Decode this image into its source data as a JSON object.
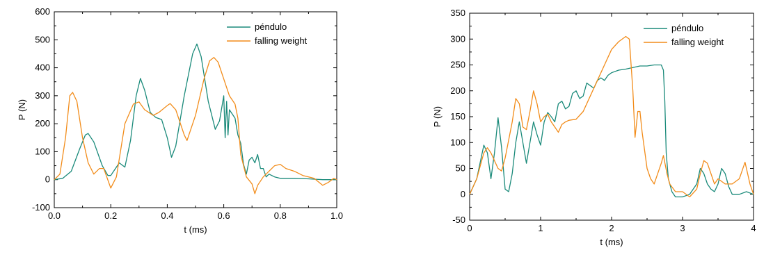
{
  "chart_data": [
    {
      "type": "line",
      "xlabel": "t (ms)",
      "ylabel": "P (N)",
      "xlim": [
        0.0,
        1.0
      ],
      "ylim": [
        -100,
        600
      ],
      "xticks": [
        "0.0",
        "0.2",
        "0.4",
        "0.6",
        "0.8",
        "1.0"
      ],
      "yticks": [
        "-100",
        "0",
        "100",
        "200",
        "300",
        "400",
        "500",
        "600"
      ],
      "legend_position": "top-right",
      "grid": false,
      "series": [
        {
          "name": "péndulo",
          "color": "#1a8a7a",
          "points": [
            [
              0,
              0
            ],
            [
              0.03,
              5
            ],
            [
              0.06,
              30
            ],
            [
              0.09,
              110
            ],
            [
              0.11,
              160
            ],
            [
              0.12,
              165
            ],
            [
              0.14,
              135
            ],
            [
              0.17,
              50
            ],
            [
              0.19,
              15
            ],
            [
              0.2,
              15
            ],
            [
              0.22,
              45
            ],
            [
              0.23,
              60
            ],
            [
              0.25,
              45
            ],
            [
              0.27,
              140
            ],
            [
              0.29,
              300
            ],
            [
              0.305,
              362
            ],
            [
              0.32,
              320
            ],
            [
              0.34,
              240
            ],
            [
              0.36,
              222
            ],
            [
              0.38,
              215
            ],
            [
              0.4,
              150
            ],
            [
              0.415,
              80
            ],
            [
              0.43,
              120
            ],
            [
              0.46,
              300
            ],
            [
              0.49,
              450
            ],
            [
              0.505,
              485
            ],
            [
              0.52,
              440
            ],
            [
              0.545,
              280
            ],
            [
              0.57,
              180
            ],
            [
              0.585,
              210
            ],
            [
              0.6,
              300
            ],
            [
              0.605,
              150
            ],
            [
              0.61,
              280
            ],
            [
              0.615,
              160
            ],
            [
              0.62,
              250
            ],
            [
              0.64,
              220
            ],
            [
              0.65,
              160
            ],
            [
              0.66,
              130
            ],
            [
              0.67,
              55
            ],
            [
              0.68,
              20
            ],
            [
              0.69,
              70
            ],
            [
              0.7,
              80
            ],
            [
              0.71,
              60
            ],
            [
              0.72,
              90
            ],
            [
              0.73,
              40
            ],
            [
              0.74,
              40
            ],
            [
              0.75,
              10
            ],
            [
              0.76,
              20
            ],
            [
              0.78,
              10
            ],
            [
              0.8,
              5
            ],
            [
              0.85,
              5
            ],
            [
              0.9,
              3
            ],
            [
              0.95,
              0
            ],
            [
              1.0,
              0
            ]
          ]
        },
        {
          "name": "falling weight",
          "color": "#f28c1a",
          "points": [
            [
              0,
              0
            ],
            [
              0.02,
              20
            ],
            [
              0.04,
              150
            ],
            [
              0.055,
              300
            ],
            [
              0.065,
              312
            ],
            [
              0.08,
              280
            ],
            [
              0.1,
              150
            ],
            [
              0.12,
              60
            ],
            [
              0.14,
              20
            ],
            [
              0.16,
              40
            ],
            [
              0.175,
              40
            ],
            [
              0.2,
              -30
            ],
            [
              0.22,
              10
            ],
            [
              0.25,
              200
            ],
            [
              0.28,
              270
            ],
            [
              0.3,
              278
            ],
            [
              0.32,
              250
            ],
            [
              0.35,
              230
            ],
            [
              0.37,
              240
            ],
            [
              0.4,
              265
            ],
            [
              0.41,
              272
            ],
            [
              0.43,
              250
            ],
            [
              0.46,
              160
            ],
            [
              0.47,
              140
            ],
            [
              0.5,
              230
            ],
            [
              0.53,
              360
            ],
            [
              0.55,
              425
            ],
            [
              0.565,
              437
            ],
            [
              0.58,
              420
            ],
            [
              0.6,
              360
            ],
            [
              0.62,
              300
            ],
            [
              0.64,
              270
            ],
            [
              0.65,
              220
            ],
            [
              0.66,
              90
            ],
            [
              0.68,
              10
            ],
            [
              0.7,
              -15
            ],
            [
              0.71,
              -50
            ],
            [
              0.72,
              -20
            ],
            [
              0.74,
              10
            ],
            [
              0.76,
              30
            ],
            [
              0.78,
              50
            ],
            [
              0.8,
              55
            ],
            [
              0.82,
              40
            ],
            [
              0.85,
              30
            ],
            [
              0.88,
              15
            ],
            [
              0.92,
              5
            ],
            [
              0.95,
              -20
            ],
            [
              0.97,
              -10
            ],
            [
              0.99,
              5
            ],
            [
              1.0,
              0
            ]
          ]
        }
      ]
    },
    {
      "type": "line",
      "xlabel": "t (ms)",
      "ylabel": "P (N)",
      "xlim": [
        0,
        4
      ],
      "ylim": [
        -50,
        350
      ],
      "xticks": [
        "0",
        "1",
        "2",
        "3",
        "4"
      ],
      "yticks": [
        "-50",
        "0",
        "50",
        "100",
        "150",
        "200",
        "250",
        "300",
        "350"
      ],
      "legend_position": "top-right",
      "grid": false,
      "series": [
        {
          "name": "péndulo",
          "color": "#1a8a7a",
          "points": [
            [
              0,
              0
            ],
            [
              0.1,
              30
            ],
            [
              0.2,
              95
            ],
            [
              0.25,
              80
            ],
            [
              0.3,
              30
            ],
            [
              0.35,
              80
            ],
            [
              0.4,
              148
            ],
            [
              0.45,
              90
            ],
            [
              0.5,
              10
            ],
            [
              0.55,
              5
            ],
            [
              0.6,
              40
            ],
            [
              0.65,
              100
            ],
            [
              0.7,
              140
            ],
            [
              0.75,
              100
            ],
            [
              0.8,
              60
            ],
            [
              0.85,
              100
            ],
            [
              0.9,
              140
            ],
            [
              0.95,
              115
            ],
            [
              1.0,
              95
            ],
            [
              1.05,
              140
            ],
            [
              1.1,
              158
            ],
            [
              1.15,
              150
            ],
            [
              1.2,
              140
            ],
            [
              1.25,
              175
            ],
            [
              1.3,
              180
            ],
            [
              1.35,
              165
            ],
            [
              1.4,
              170
            ],
            [
              1.45,
              195
            ],
            [
              1.5,
              200
            ],
            [
              1.55,
              185
            ],
            [
              1.6,
              190
            ],
            [
              1.65,
              215
            ],
            [
              1.7,
              210
            ],
            [
              1.75,
              205
            ],
            [
              1.8,
              220
            ],
            [
              1.85,
              225
            ],
            [
              1.9,
              220
            ],
            [
              1.95,
              230
            ],
            [
              2.0,
              235
            ],
            [
              2.1,
              240
            ],
            [
              2.2,
              242
            ],
            [
              2.3,
              245
            ],
            [
              2.4,
              248
            ],
            [
              2.5,
              248
            ],
            [
              2.6,
              250
            ],
            [
              2.7,
              250
            ],
            [
              2.73,
              240
            ],
            [
              2.75,
              180
            ],
            [
              2.77,
              80
            ],
            [
              2.8,
              30
            ],
            [
              2.85,
              5
            ],
            [
              2.9,
              -5
            ],
            [
              3.0,
              -5
            ],
            [
              3.1,
              0
            ],
            [
              3.2,
              20
            ],
            [
              3.25,
              50
            ],
            [
              3.3,
              40
            ],
            [
              3.35,
              20
            ],
            [
              3.4,
              10
            ],
            [
              3.45,
              5
            ],
            [
              3.5,
              20
            ],
            [
              3.55,
              50
            ],
            [
              3.6,
              40
            ],
            [
              3.65,
              15
            ],
            [
              3.7,
              0
            ],
            [
              3.8,
              0
            ],
            [
              3.9,
              5
            ],
            [
              4.0,
              0
            ]
          ]
        },
        {
          "name": "falling weight",
          "color": "#f28c1a",
          "points": [
            [
              0,
              0
            ],
            [
              0.1,
              30
            ],
            [
              0.2,
              80
            ],
            [
              0.25,
              90
            ],
            [
              0.3,
              80
            ],
            [
              0.4,
              50
            ],
            [
              0.45,
              45
            ],
            [
              0.5,
              70
            ],
            [
              0.6,
              140
            ],
            [
              0.65,
              185
            ],
            [
              0.7,
              175
            ],
            [
              0.75,
              130
            ],
            [
              0.8,
              125
            ],
            [
              0.85,
              160
            ],
            [
              0.9,
              200
            ],
            [
              0.95,
              175
            ],
            [
              1.0,
              140
            ],
            [
              1.05,
              150
            ],
            [
              1.1,
              155
            ],
            [
              1.15,
              140
            ],
            [
              1.2,
              130
            ],
            [
              1.25,
              120
            ],
            [
              1.3,
              135
            ],
            [
              1.35,
              140
            ],
            [
              1.4,
              143
            ],
            [
              1.5,
              145
            ],
            [
              1.6,
              160
            ],
            [
              1.7,
              190
            ],
            [
              1.8,
              220
            ],
            [
              1.9,
              250
            ],
            [
              2.0,
              280
            ],
            [
              2.1,
              295
            ],
            [
              2.2,
              305
            ],
            [
              2.25,
              300
            ],
            [
              2.3,
              200
            ],
            [
              2.33,
              110
            ],
            [
              2.37,
              160
            ],
            [
              2.4,
              160
            ],
            [
              2.43,
              120
            ],
            [
              2.5,
              50
            ],
            [
              2.55,
              30
            ],
            [
              2.6,
              20
            ],
            [
              2.65,
              40
            ],
            [
              2.7,
              60
            ],
            [
              2.73,
              75
            ],
            [
              2.78,
              40
            ],
            [
              2.82,
              20
            ],
            [
              2.9,
              5
            ],
            [
              3.0,
              5
            ],
            [
              3.1,
              -5
            ],
            [
              3.2,
              10
            ],
            [
              3.25,
              40
            ],
            [
              3.3,
              65
            ],
            [
              3.35,
              60
            ],
            [
              3.4,
              40
            ],
            [
              3.45,
              20
            ],
            [
              3.5,
              30
            ],
            [
              3.6,
              20
            ],
            [
              3.7,
              20
            ],
            [
              3.8,
              30
            ],
            [
              3.88,
              62
            ],
            [
              3.95,
              20
            ],
            [
              4.0,
              0
            ]
          ]
        }
      ]
    }
  ]
}
